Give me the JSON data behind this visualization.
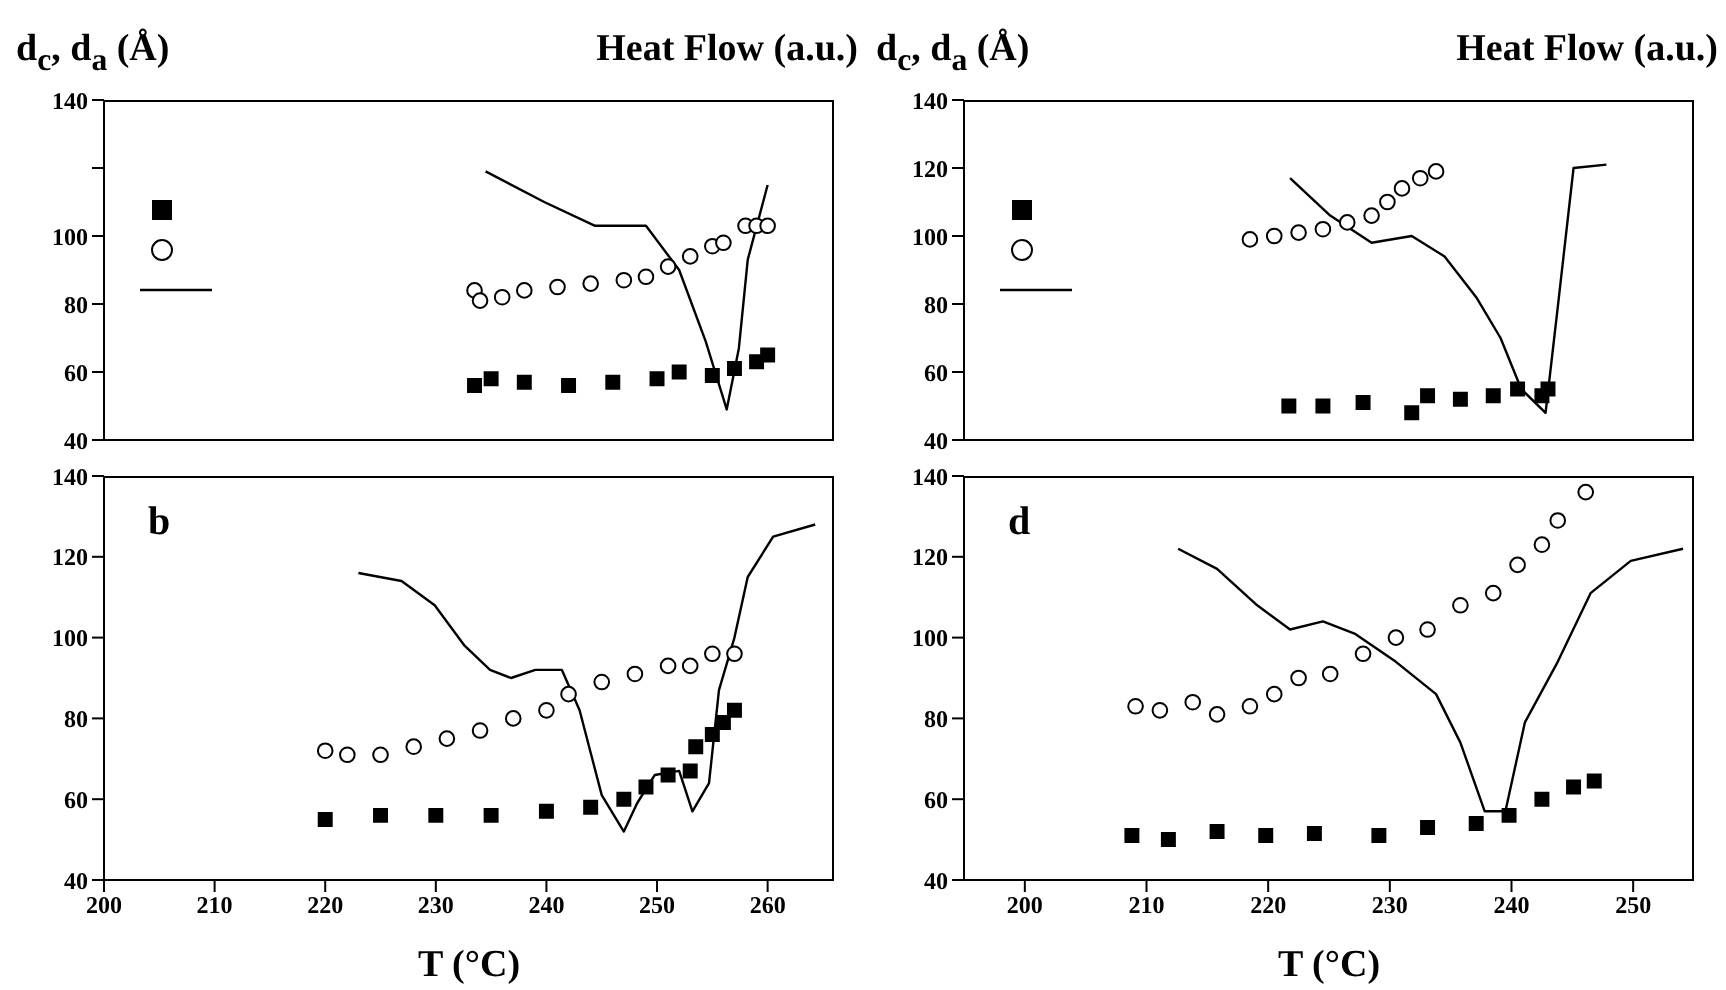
{
  "chart_data": [
    {
      "type": "scatter",
      "ylabel": "d$_{c}$, d$_{a}$ (Å)",
      "y2label": "Heat Flow (a.u.)",
      "xlim": [
        200,
        266
      ],
      "xticks": [
        200,
        210,
        220,
        230,
        240,
        250,
        260
      ],
      "ylim": [
        40,
        140
      ],
      "yticks": [
        40,
        60,
        80,
        100,
        {
          "value": 120,
          "label": null
        },
        140
      ],
      "tick_labels": "y",
      "series": [
        {
          "marker": "square",
          "color": "#000000",
          "x": [
            233.5,
            235,
            238,
            242,
            246,
            250,
            252,
            255,
            257,
            259,
            260
          ],
          "values": [
            56,
            58,
            57,
            56,
            57,
            58,
            60,
            59,
            61,
            63,
            65
          ]
        },
        {
          "marker": "circle",
          "color": "#000000",
          "x": [
            233.5,
            234,
            236,
            238,
            241,
            244,
            247,
            249,
            251,
            253,
            255,
            256,
            258,
            259,
            260
          ],
          "values": [
            84,
            81,
            82,
            84,
            85,
            86,
            87,
            88,
            91,
            94,
            97,
            98,
            103,
            103,
            103
          ]
        },
        {
          "type": "line",
          "marker": "none",
          "color": "#000000",
          "x": [
            234.5,
            239.8,
            244.4,
            249,
            252,
            254.4,
            256.3,
            257.4,
            258.2,
            260
          ],
          "values": [
            119,
            110,
            103,
            103,
            90,
            69,
            49,
            67,
            93,
            115
          ]
        }
      ]
    },
    {
      "type": "scatter",
      "xlabel": "T (°C)",
      "annotations": [
        "b"
      ],
      "xlim": [
        200,
        266
      ],
      "xticks": [
        200,
        210,
        220,
        230,
        240,
        250,
        260
      ],
      "ylim": [
        40,
        140
      ],
      "yticks": [
        40,
        60,
        80,
        100,
        120,
        140
      ],
      "series": [
        {
          "marker": "square",
          "color": "#000000",
          "x": [
            220,
            225,
            230,
            235,
            240,
            244,
            247,
            249,
            251,
            253,
            253.5,
            255,
            256,
            257
          ],
          "values": [
            55,
            56,
            56,
            56,
            57,
            58,
            60,
            63,
            66,
            67,
            73,
            76,
            79,
            82
          ]
        },
        {
          "marker": "circle",
          "color": "#000000",
          "x": [
            220,
            222,
            225,
            228,
            231,
            234,
            237,
            240,
            242,
            245,
            248,
            251,
            253,
            255,
            257
          ],
          "values": [
            72,
            71,
            71,
            73,
            75,
            77,
            80,
            82,
            86,
            89,
            91,
            93,
            93,
            96,
            96
          ]
        },
        {
          "type": "line",
          "marker": "none",
          "color": "#000000",
          "x": [
            223,
            226.9,
            229.9,
            232.6,
            234.9,
            236.8,
            239,
            241.4,
            243,
            245,
            247,
            248.2,
            249.8,
            252,
            253.2,
            254.7,
            255.6,
            257,
            258.2,
            260.5,
            264.3
          ],
          "values": [
            116,
            114,
            108,
            98,
            92,
            90,
            92,
            92,
            82,
            61,
            52,
            59,
            66,
            67,
            57,
            64,
            87,
            100,
            115,
            125,
            128
          ]
        }
      ]
    },
    {
      "type": "scatter",
      "ylabel": "d$_{c}$, d$_{a}$ (Å)",
      "y2label": "Heat Flow (a.u.)",
      "xlim": [
        195,
        255
      ],
      "xticks": [
        200,
        210,
        220,
        230,
        240,
        250
      ],
      "ylim": [
        40,
        140
      ],
      "yticks": [
        40,
        60,
        80,
        100,
        120,
        140
      ],
      "tick_labels": "y",
      "series": [
        {
          "marker": "square",
          "color": "#000000",
          "x": [
            221.7,
            224.5,
            227.8,
            231.8,
            233.1,
            235.8,
            238.5,
            240.5,
            242.5,
            243
          ],
          "values": [
            50,
            50,
            51,
            48,
            53,
            52,
            53,
            55,
            53,
            55
          ]
        },
        {
          "marker": "circle",
          "color": "#000000",
          "x": [
            218.5,
            220.5,
            222.5,
            224.5,
            226.5,
            228.5,
            229.8,
            231,
            232.5,
            233.8
          ],
          "values": [
            99,
            100,
            101,
            102,
            104,
            106,
            110,
            114,
            117,
            119
          ]
        },
        {
          "type": "line",
          "marker": "none",
          "color": "#000000",
          "x": [
            221.8,
            225.1,
            228.5,
            231.8,
            234.5,
            237.1,
            239.1,
            240.8,
            242.8,
            243.8,
            245.1,
            247.8
          ],
          "values": [
            117,
            106,
            98,
            100,
            94,
            82,
            70,
            55,
            48,
            79,
            120,
            121
          ]
        }
      ]
    },
    {
      "type": "scatter",
      "xlabel": "T (°C)",
      "annotations": [
        "d"
      ],
      "xlim": [
        195,
        255
      ],
      "xticks": [
        200,
        210,
        220,
        230,
        240,
        250
      ],
      "ylim": [
        40,
        140
      ],
      "yticks": [
        40,
        60,
        80,
        100,
        120,
        140
      ],
      "series": [
        {
          "marker": "square",
          "color": "#000000",
          "x": [
            208.8,
            211.8,
            215.8,
            219.8,
            223.8,
            229.1,
            233.1,
            237.1,
            239.8,
            242.5,
            245.1,
            246.8
          ],
          "values": [
            51,
            50,
            52,
            51,
            51.5,
            51,
            53,
            54,
            56,
            60,
            63,
            64.5
          ]
        },
        {
          "marker": "circle",
          "color": "#000000",
          "x": [
            209.1,
            211.1,
            213.8,
            215.8,
            218.5,
            220.5,
            222.5,
            225.1,
            227.8,
            230.5,
            233.1,
            235.8,
            238.5,
            240.5,
            242.5,
            243.8,
            246.1
          ],
          "values": [
            83,
            82,
            84,
            81,
            83,
            86,
            90,
            91,
            96,
            100,
            102,
            108,
            111,
            118,
            123,
            129,
            136
          ]
        },
        {
          "type": "line",
          "marker": "none",
          "color": "#000000",
          "x": [
            212.6,
            215.8,
            219.1,
            221.8,
            224.5,
            227.1,
            230.5,
            233.8,
            235.8,
            237.8,
            239.5,
            241.1,
            243.8,
            246.5,
            249.8,
            254.1
          ],
          "values": [
            122,
            117,
            108,
            102,
            104,
            101,
            94,
            86,
            74,
            57,
            57,
            79,
            94,
            111,
            119,
            122
          ]
        }
      ]
    }
  ]
}
